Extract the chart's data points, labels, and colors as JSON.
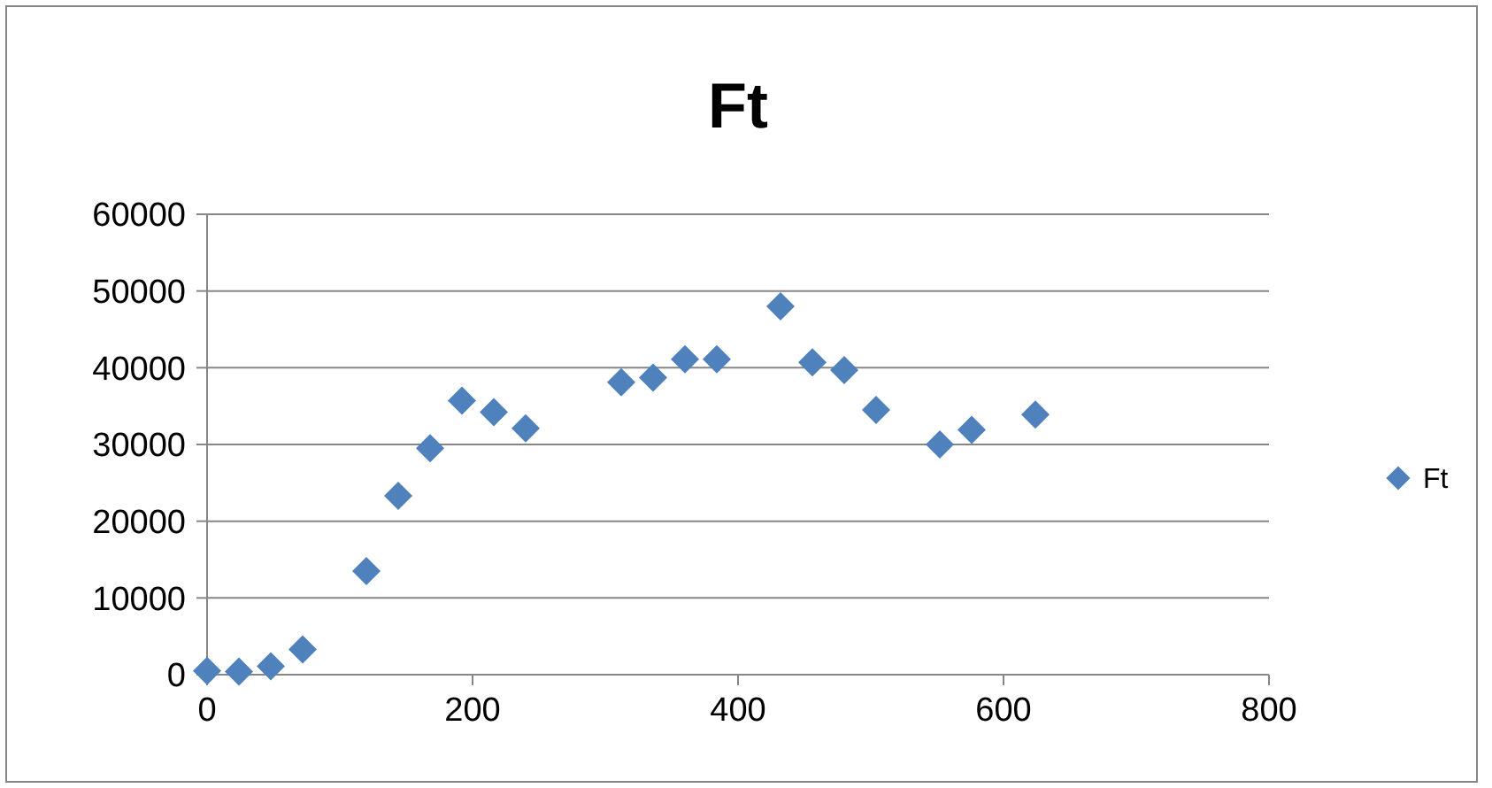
{
  "chart_data": {
    "type": "scatter",
    "title": "Ft",
    "x": [
      0,
      24,
      48,
      72,
      120,
      144,
      168,
      192,
      216,
      240,
      312,
      336,
      360,
      384,
      432,
      456,
      480,
      504,
      552,
      576,
      624
    ],
    "series": [
      {
        "name": "Ft",
        "color": "#4f81bd",
        "values": [
          500,
          400,
          1100,
          3300,
          13500,
          23300,
          29500,
          35700,
          34200,
          32100,
          38100,
          38700,
          41100,
          41100,
          48000,
          40700,
          39700,
          34500,
          30000,
          31900,
          33900
        ]
      }
    ],
    "xlim": [
      0,
      800
    ],
    "xticks": [
      0,
      200,
      400,
      600,
      800
    ],
    "ylim": [
      0,
      60000
    ],
    "yticks": [
      0,
      10000,
      20000,
      30000,
      40000,
      50000,
      60000
    ],
    "grid": "y",
    "legend": "right",
    "marker": "diamond"
  }
}
